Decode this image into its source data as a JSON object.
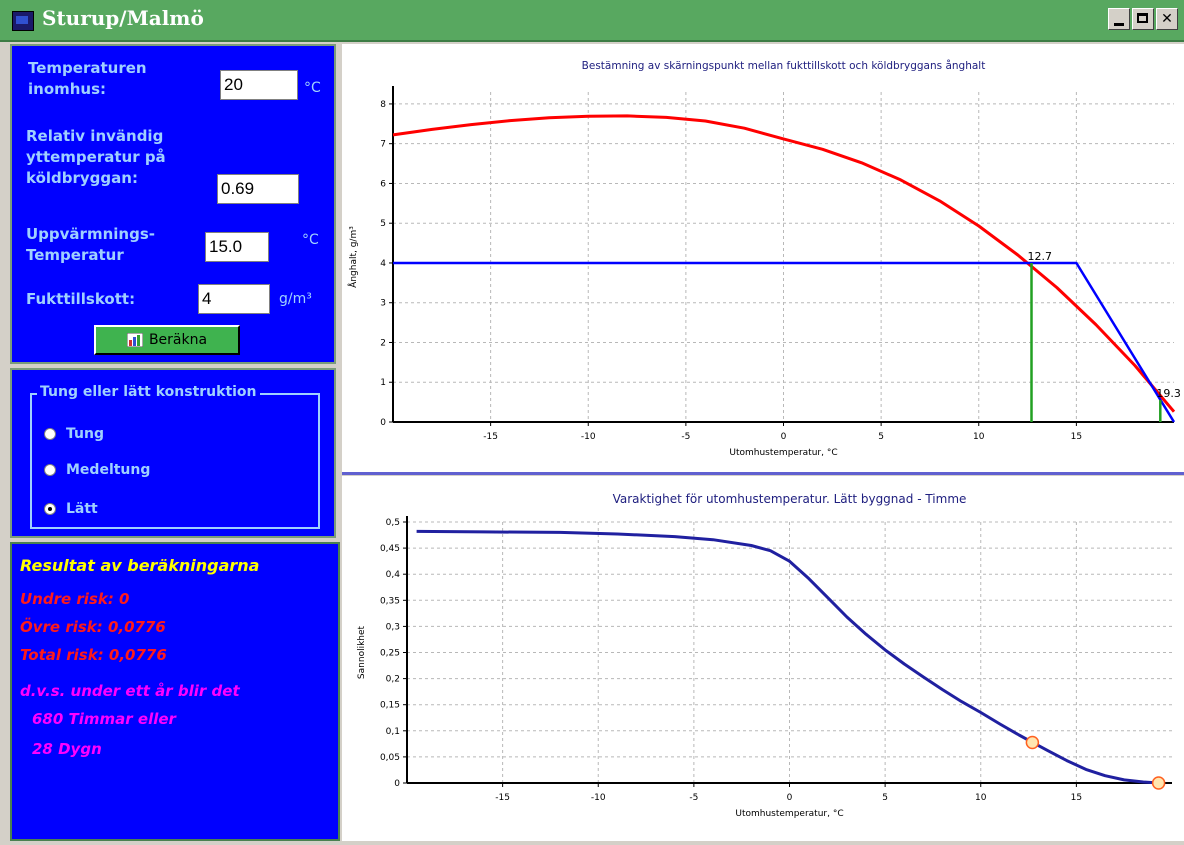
{
  "window": {
    "title": "Sturup/Malmö"
  },
  "inputs": {
    "temp_inomhus": {
      "label_line1": "Temperaturen",
      "label_line2": "inomhus:",
      "value": "20",
      "unit": "°C"
    },
    "rel_yttemp": {
      "label_line1": "Relativ invändig",
      "label_line2": "yttemperatur på",
      "label_line3": "köldbryggan:",
      "value": "0.69"
    },
    "uppvarmning": {
      "label_line1": "Uppvärmnings-",
      "label_line2": "Temperatur",
      "value": "15.0",
      "unit": "°C"
    },
    "fukttillskott": {
      "label": "Fukttillskott:",
      "value": "4",
      "unit": "g/m³"
    },
    "calc_button": "Beräkna"
  },
  "construction": {
    "group_title": "Tung eller lätt konstruktion",
    "options": [
      "Tung",
      "Medeltung",
      "Lätt"
    ],
    "selected": "Lätt"
  },
  "results": {
    "heading": "Resultat av beräkningarna",
    "undre_risk": "Undre risk: 0",
    "ovre_risk": "Övre risk: 0,0776",
    "total_risk": "Total risk: 0,0776",
    "summary_line1": "d.v.s. under ett år blir det",
    "summary_line2": "680 Timmar  eller",
    "summary_line3": "28 Dygn"
  },
  "colors": {
    "panel_bg": "#0000ff",
    "label": "#9fd0ff",
    "result_heading": "#ffff00",
    "result_risk": "#ff1a1a",
    "result_summary": "#ff00ff",
    "title_bar": "#58a860"
  },
  "chart_data": [
    {
      "type": "line",
      "title": "Bestämning av skärningspunkt mellan fukttillskott och köldbryggans ånghalt",
      "xlabel": "Utomhustemperatur, °C",
      "ylabel": "Ånghalt, g/m³",
      "xlim": [
        -20,
        20
      ],
      "ylim": [
        0,
        8.3
      ],
      "xticks": [
        -15,
        -10,
        -5,
        0,
        5,
        10,
        15
      ],
      "yticks": [
        0,
        1,
        2,
        3,
        4,
        5,
        6,
        7,
        8
      ],
      "grid": true,
      "series": [
        {
          "x": [
            -20,
            -18,
            -16,
            -14,
            -12,
            -10,
            -8,
            -6,
            -4,
            -2,
            0,
            2,
            4,
            6,
            8,
            10,
            12,
            14,
            16,
            18,
            20
          ],
          "y": [
            7.22,
            7.36,
            7.48,
            7.58,
            7.65,
            7.69,
            7.7,
            7.66,
            7.57,
            7.39,
            7.12,
            6.86,
            6.52,
            6.09,
            5.56,
            4.93,
            4.2,
            3.38,
            2.45,
            1.42,
            0.26
          ],
          "color": "#ff0000"
        },
        {
          "x": [
            -20,
            15,
            20
          ],
          "y": [
            4,
            4,
            0
          ],
          "color": "#0000ff"
        },
        {
          "x": [
            12.7,
            12.7
          ],
          "y": [
            0,
            4
          ],
          "color": "#22a022"
        },
        {
          "x": [
            19.3,
            19.3
          ],
          "y": [
            0,
            0.55
          ],
          "color": "#22a022"
        }
      ],
      "annotations": [
        {
          "x": 12.7,
          "y": 4.0,
          "text": "12.7"
        },
        {
          "x": 19.3,
          "y": 0.55,
          "text": "19.3"
        }
      ]
    },
    {
      "type": "line",
      "title": "Varaktighet för utomhustemperatur. Lätt byggnad - Timme",
      "xlabel": "Utomhustemperatur, °C",
      "ylabel": "Sannolikhet",
      "xlim": [
        -20,
        20
      ],
      "ylim": [
        0,
        0.5
      ],
      "xticks": [
        -15,
        -10,
        -5,
        0,
        5,
        10,
        15
      ],
      "yticks": [
        0,
        0.05,
        0.1,
        0.15,
        0.2,
        0.25,
        0.3,
        0.35,
        0.4,
        0.45,
        0.5
      ],
      "ytick_labels": [
        "0",
        "0,05",
        "0,1",
        "0,15",
        "0,2",
        "0,25",
        "0,3",
        "0,35",
        "0,4",
        "0,45",
        "0,5"
      ],
      "grid": true,
      "series": [
        {
          "x": [
            -19.5,
            -16,
            -12,
            -9,
            -6,
            -4,
            -2,
            -1,
            0,
            1,
            2,
            3,
            4,
            5,
            6,
            7,
            8,
            9,
            10,
            11,
            12,
            12.7,
            13.5,
            14.5,
            15.5,
            16.5,
            17.5,
            18.5,
            19.3
          ],
          "y": [
            0.482,
            0.481,
            0.48,
            0.477,
            0.472,
            0.466,
            0.455,
            0.445,
            0.425,
            0.392,
            0.355,
            0.318,
            0.285,
            0.255,
            0.228,
            0.203,
            0.179,
            0.156,
            0.135,
            0.113,
            0.092,
            0.078,
            0.062,
            0.043,
            0.026,
            0.014,
            0.006,
            0.002,
            0.0
          ],
          "color": "#2020a0"
        }
      ],
      "markers": [
        {
          "x": 12.7,
          "y": 0.0776
        },
        {
          "x": 19.3,
          "y": 0.0
        }
      ]
    }
  ]
}
